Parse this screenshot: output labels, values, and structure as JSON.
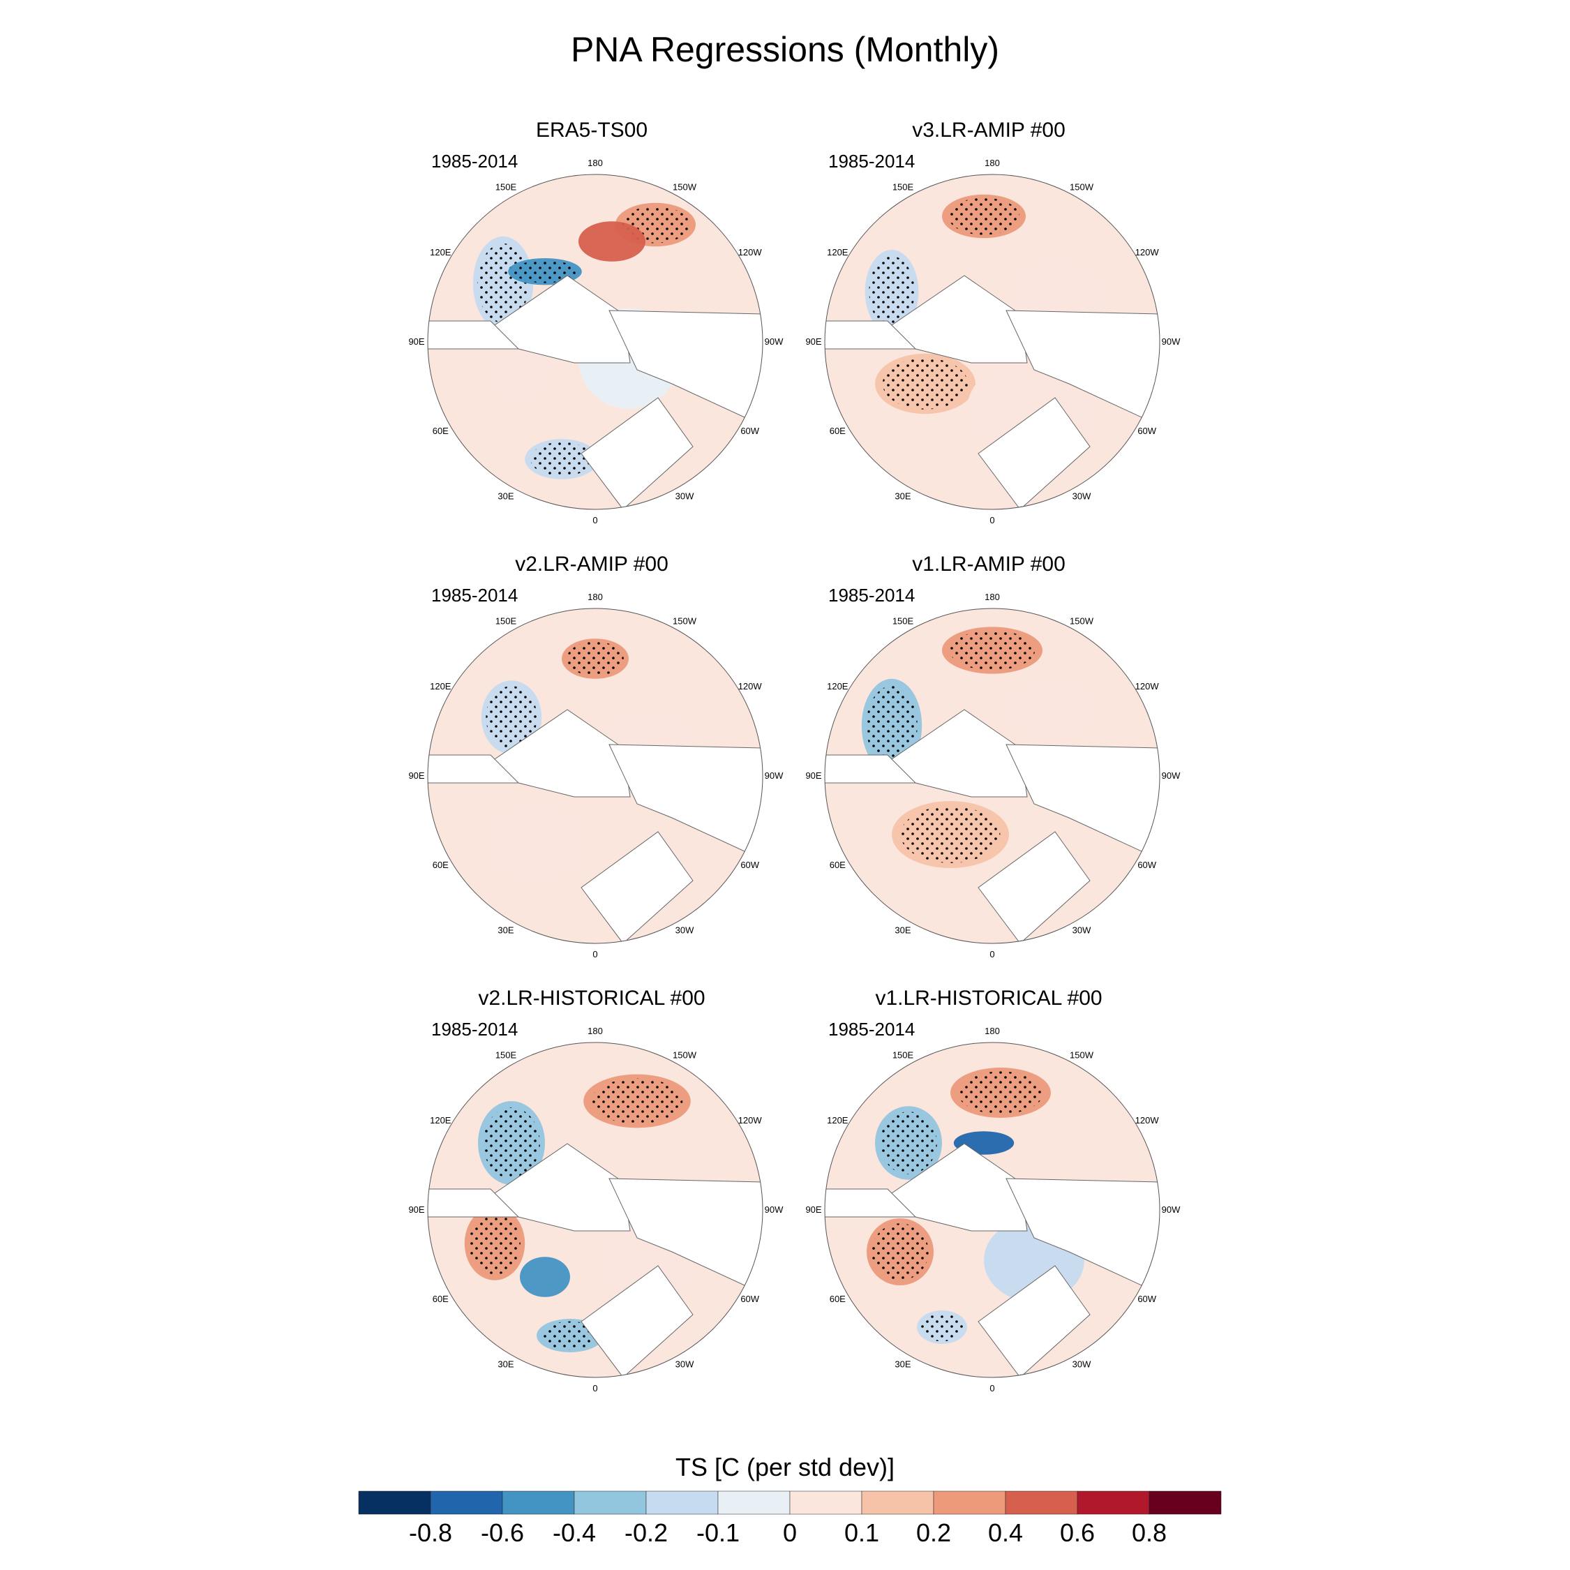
{
  "figure": {
    "title": "PNA Regressions (Monthly)"
  },
  "panels": [
    {
      "title": "ERA5-TS00",
      "period": "1985-2014",
      "pos": "top-left"
    },
    {
      "title": "v3.LR-AMIP  #00",
      "period": "1985-2014",
      "pos": "top-right"
    },
    {
      "title": "v2.LR-AMIP  #00",
      "period": "1985-2014",
      "pos": "middle-left"
    },
    {
      "title": "v1.LR-AMIP  #00",
      "period": "1985-2014",
      "pos": "middle-right"
    },
    {
      "title": "v2.LR-HISTORICAL  #00",
      "period": "1985-2014",
      "pos": "bottom-left"
    },
    {
      "title": "v1.LR-HISTORICAL  #00",
      "period": "1985-2014",
      "pos": "bottom-right"
    }
  ],
  "lon_labels": [
    "180",
    "150E",
    "120E",
    "90E",
    "60E",
    "30E",
    "0",
    "30W",
    "60W",
    "90W",
    "120W",
    "150W"
  ],
  "colorbar": {
    "title": "TS [C (per std dev)]",
    "colors": [
      "#053061",
      "#2166ac",
      "#4393c3",
      "#92c5de",
      "#c6dbef",
      "#e8f0f6",
      "#fbe6de",
      "#f7c3a8",
      "#ec9a7a",
      "#d6604d",
      "#b2182b",
      "#67001f"
    ],
    "labels": [
      "-0.8",
      "-0.6",
      "-0.4",
      "-0.2",
      "-0.1",
      "0",
      "0.1",
      "0.2",
      "0.4",
      "0.6",
      "0.8"
    ]
  }
}
